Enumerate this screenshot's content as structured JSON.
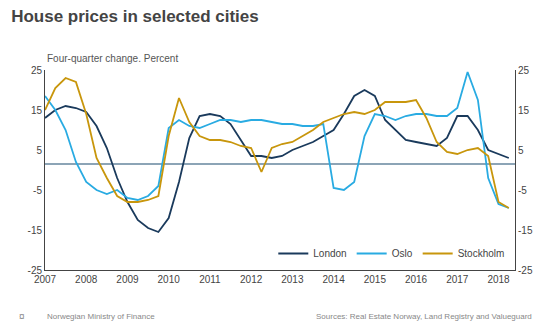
{
  "chart_data": {
    "type": "line",
    "title": "House prices in selected cities",
    "subtitle": "Four-quarter change. Percent",
    "annotations": [
      "¤",
      "Norwegian Ministry of Finance",
      "Sources: Real Estate Norway, Land Registry and Valueguard"
    ],
    "x": [
      2007.0,
      2007.25,
      2007.5,
      2007.75,
      2008.0,
      2008.25,
      2008.5,
      2008.75,
      2009.0,
      2009.25,
      2009.5,
      2009.75,
      2010.0,
      2010.25,
      2010.5,
      2010.75,
      2011.0,
      2011.25,
      2011.5,
      2011.75,
      2012.0,
      2012.25,
      2012.5,
      2012.75,
      2013.0,
      2013.25,
      2013.5,
      2013.75,
      2014.0,
      2014.25,
      2014.5,
      2014.75,
      2015.0,
      2015.25,
      2015.5,
      2015.75,
      2016.0,
      2016.25,
      2016.5,
      2016.75,
      2017.0,
      2017.25,
      2017.5,
      2017.75,
      2018.0,
      2018.25
    ],
    "series": [
      {
        "name": "London",
        "color": "#1a3a5c",
        "values": [
          13.0,
          15.0,
          16.0,
          15.5,
          14.5,
          11.0,
          5.5,
          -2.0,
          -8.0,
          -12.5,
          -14.5,
          -15.5,
          -12.0,
          -3.0,
          8.0,
          13.5,
          14.0,
          13.5,
          11.5,
          7.5,
          3.5,
          3.5,
          3.0,
          3.5,
          5.0,
          6.0,
          7.0,
          8.5,
          10.0,
          14.0,
          18.5,
          20.0,
          18.5,
          12.5,
          10.0,
          7.5,
          7.0,
          6.5,
          6.0,
          8.0,
          13.5,
          13.5,
          10.0,
          5.0,
          4.0,
          3.0
        ]
      },
      {
        "name": "Oslo",
        "color": "#29abe2",
        "values": [
          18.5,
          15.0,
          10.0,
          2.0,
          -3.0,
          -5.0,
          -6.0,
          -5.0,
          -7.0,
          -7.5,
          -6.5,
          -4.0,
          10.5,
          12.5,
          11.0,
          10.5,
          11.5,
          12.5,
          12.5,
          12.0,
          12.5,
          12.5,
          12.0,
          11.5,
          11.5,
          11.0,
          11.0,
          11.5,
          -4.5,
          -5.0,
          -3.0,
          8.5,
          14.0,
          13.5,
          12.5,
          13.5,
          14.0,
          14.0,
          13.5,
          13.5,
          15.5,
          24.5,
          17.5,
          -2.0,
          -8.5,
          -9.5
        ]
      },
      {
        "name": "Stockholm",
        "color": "#c8960c",
        "values": [
          15.0,
          20.5,
          23.0,
          22.0,
          14.0,
          3.0,
          -2.0,
          -6.5,
          -8.0,
          -8.0,
          -7.5,
          -6.5,
          8.5,
          18.0,
          12.0,
          8.5,
          7.5,
          7.5,
          7.0,
          6.0,
          5.5,
          -0.5,
          5.5,
          6.5,
          7.0,
          8.5,
          10.0,
          12.0,
          13.0,
          14.0,
          14.5,
          14.0,
          15.0,
          17.0,
          17.0,
          17.0,
          17.5,
          13.0,
          7.0,
          4.5,
          4.0,
          5.0,
          5.5,
          3.5,
          -8.0,
          -9.5
        ]
      }
    ],
    "hline": {
      "y": 1.5,
      "color": "#1a4a6e"
    },
    "xlim": [
      2007,
      2018.4
    ],
    "xticks": [
      2007,
      2008,
      2009,
      2010,
      2011,
      2012,
      2013,
      2014,
      2015,
      2016,
      2017,
      2018
    ],
    "ylim": [
      -25,
      25
    ],
    "yticks": [
      -25,
      -15,
      -5,
      5,
      15,
      25
    ],
    "y2lim": [
      -25,
      25
    ],
    "y2ticks": [
      -25,
      -15,
      -5,
      5,
      15,
      25
    ],
    "grid": false,
    "legend": "lower right"
  }
}
